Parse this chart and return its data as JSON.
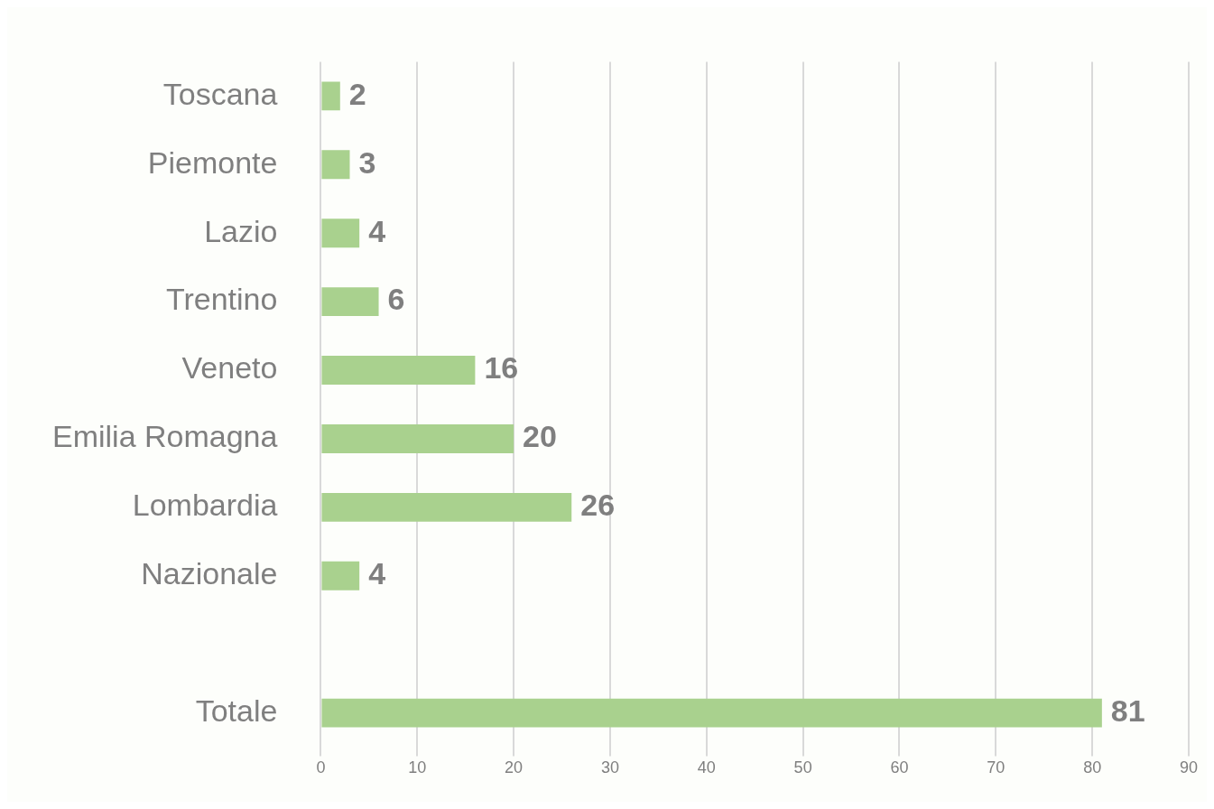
{
  "chart_data": {
    "type": "bar",
    "orientation": "horizontal",
    "categories": [
      "Toscana",
      "Piemonte",
      "Lazio",
      "Trentino",
      "Veneto",
      "Emilia Romagna",
      "Lombardia",
      "Nazionale",
      null,
      "Totale"
    ],
    "values": [
      2,
      3,
      4,
      6,
      16,
      20,
      26,
      4,
      null,
      81
    ],
    "color": "#a9d18e",
    "xlim": [
      0,
      90
    ],
    "xticks": [
      0,
      10,
      20,
      30,
      40,
      50,
      60,
      70,
      80,
      90
    ],
    "grid": "x",
    "legend": false,
    "data_labels": true
  }
}
